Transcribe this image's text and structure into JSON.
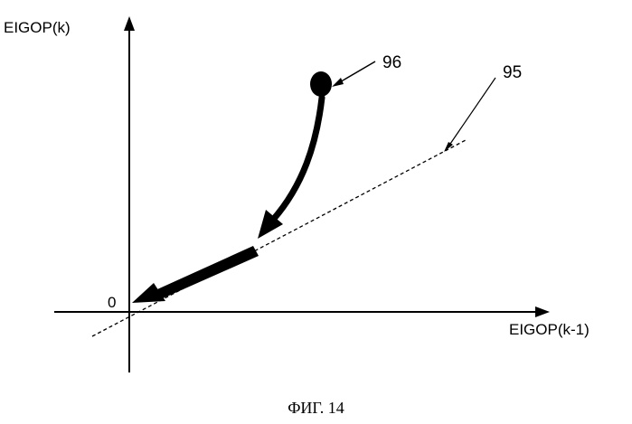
{
  "figure": {
    "y_axis_label": "EIGOP(k)",
    "x_axis_label": "EIGOP(k-1)",
    "origin_label": "0",
    "ref_96": "96",
    "ref_95": "95",
    "caption": "ФИГ. 14"
  }
}
